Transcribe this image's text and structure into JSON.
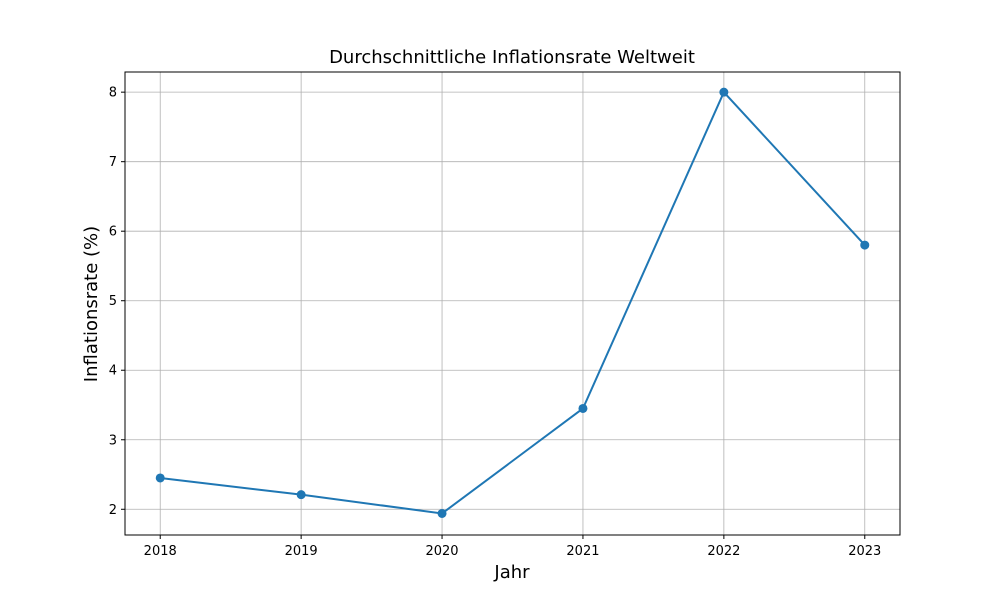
{
  "chart_data": {
    "type": "line",
    "title": "Durchschnittliche Inflationsrate Weltweit",
    "x_label": "Jahr",
    "y_label": "Inflationsrate (%)",
    "x": [
      2018,
      2019,
      2020,
      2021,
      2022,
      2023
    ],
    "series": [
      {
        "name": "Inflationsrate",
        "color": "#1f77b4",
        "values": [
          2.45,
          2.21,
          1.94,
          3.45,
          8.0,
          5.8
        ]
      }
    ],
    "xlim": [
      2017.75,
      2023.25
    ],
    "xticks": [
      2018,
      2019,
      2020,
      2021,
      2022,
      2023
    ],
    "ylim": [
      1.63,
      8.29
    ],
    "yticks": [
      2,
      3,
      4,
      5,
      6,
      7,
      8
    ],
    "grid": true
  }
}
